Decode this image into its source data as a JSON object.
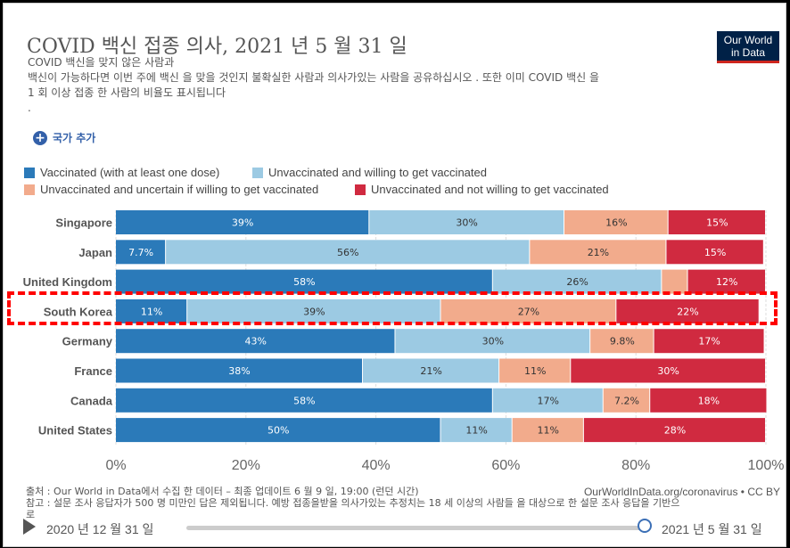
{
  "header": {
    "title": "COVID 백신 접종 의사, 2021 년 5 월 31 일",
    "subtitle_lines": [
      "COVID 백신을 맞지 않은 사람과",
      "백신이 가능하다면 이번 주에 백신 을 맞을 것인지 불확실한 사람과 의사가있는 사람을 공유하십시오 . 또한 이미 COVID 백신 을",
      "1 회 이상 접종 한 사람의 비율도 표시됩니다",
      "."
    ],
    "logo_line1": "Our World",
    "logo_line2": "in Data"
  },
  "controls": {
    "add_country_icon": "plus-circle-icon",
    "add_country_label": "국가 추가"
  },
  "colors": {
    "vaccinated": "#2b7ab9",
    "willing": "#9ccae3",
    "uncertain": "#f2ab8c",
    "unwilling": "#d02a40"
  },
  "chart_data": {
    "type": "bar",
    "orientation": "horizontal",
    "stacked": true,
    "categories": [
      "Singapore",
      "Japan",
      "United Kingdom",
      "South Korea",
      "Germany",
      "France",
      "Canada",
      "United States"
    ],
    "series": [
      {
        "name": "Vaccinated (with at least one dose)",
        "values": [
          39,
          7.7,
          58,
          11,
          43,
          38,
          58,
          50
        ],
        "labels": [
          "39%",
          "7.7%",
          "58%",
          "11%",
          "43%",
          "38%",
          "58%",
          "50%"
        ]
      },
      {
        "name": "Unvaccinated and willing to get vaccinated",
        "values": [
          30,
          56,
          26,
          39,
          30,
          21,
          17,
          11
        ],
        "labels": [
          "30%",
          "56%",
          "26%",
          "39%",
          "30%",
          "21%",
          "17%",
          "11%"
        ]
      },
      {
        "name": "Unvaccinated and uncertain if willing to get vaccinated",
        "values": [
          16,
          21,
          4,
          27,
          9.8,
          11,
          7.2,
          11
        ],
        "labels": [
          "16%",
          "21%",
          "",
          "27%",
          "9.8%",
          "11%",
          "7.2%",
          "11%"
        ]
      },
      {
        "name": "Unvaccinated and not willing to get vaccinated",
        "values": [
          15,
          15,
          12,
          22,
          17,
          30,
          18,
          28
        ],
        "labels": [
          "15%",
          "15%",
          "12%",
          "22%",
          "17%",
          "30%",
          "18%",
          "28%"
        ]
      }
    ],
    "xlim": [
      0,
      100
    ],
    "xticks": [
      "0%",
      "20%",
      "40%",
      "60%",
      "80%",
      "100%"
    ],
    "legend_position": "top",
    "highlighted_category": "South Korea"
  },
  "footer": {
    "source_lines": [
      "출처 : Our World in Data에서 수집 한 데이터 – 최종 업데이트 6 월 9 일, 19:00 (런던 시간)",
      "참고 : 설문 조사 응답자가 500 명 미만인 답은 제외됩니다. 예방 접종을받을 의사가있는 추정치는 18 세 이상의 사람들 을 대상으로 한 설문 조사 응답을 기반으",
      "로"
    ],
    "source_url": "OurWorldInData.org/coronavirus • CC BY"
  },
  "timeline": {
    "start_label": "2020 년 12 월 31 일",
    "end_label": "2021 년 5 월 31 일",
    "position_fraction": 1.0
  }
}
